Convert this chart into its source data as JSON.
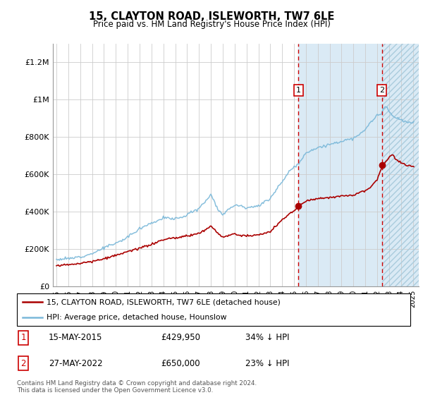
{
  "title": "15, CLAYTON ROAD, ISLEWORTH, TW7 6LE",
  "subtitle": "Price paid vs. HM Land Registry's House Price Index (HPI)",
  "ylabel_ticks": [
    "£0",
    "£200K",
    "£400K",
    "£600K",
    "£800K",
    "£1M",
    "£1.2M"
  ],
  "ytick_vals": [
    0,
    200000,
    400000,
    600000,
    800000,
    1000000,
    1200000
  ],
  "ylim": [
    0,
    1300000
  ],
  "sale1_date": 2015.37,
  "sale2_date": 2022.39,
  "sale1_price": 429950,
  "sale2_price": 650000,
  "legend_line1": "15, CLAYTON ROAD, ISLEWORTH, TW7 6LE (detached house)",
  "legend_line2": "HPI: Average price, detached house, Hounslow",
  "hpi_color": "#7ab8d9",
  "sale_color": "#aa0000",
  "shade_color": "#daeaf5",
  "bg_color": "#ffffff",
  "grid_color": "#cccccc",
  "footer": "Contains HM Land Registry data © Crown copyright and database right 2024.\nThis data is licensed under the Open Government Licence v3.0."
}
